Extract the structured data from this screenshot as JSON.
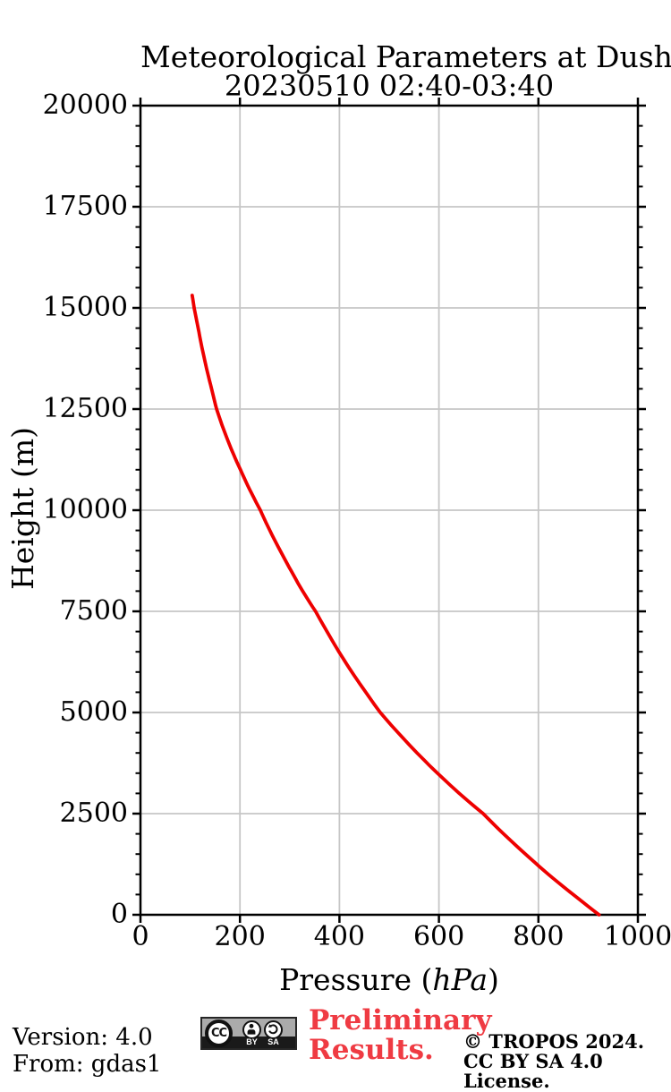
{
  "chart_data": {
    "type": "line",
    "title": "Meteorological Parameters at Dushanbe",
    "subtitle": "20230510 02:40-03:40",
    "xlabel": "Pressure (hPa)",
    "xlabel_parts": {
      "prefix": "Pressure (",
      "unit": "hPa",
      "suffix": ")"
    },
    "ylabel": "Height (m)",
    "xlim": [
      0,
      1000
    ],
    "ylim": [
      0,
      20000
    ],
    "x_ticks": [
      0,
      200,
      400,
      600,
      800,
      1000
    ],
    "y_ticks": [
      0,
      2500,
      5000,
      7500,
      10000,
      12500,
      15000,
      17500,
      20000
    ],
    "y_minor_step": 500,
    "grid": true,
    "grid_color": "#c6c6c6",
    "axis_color": "#000000",
    "series": [
      {
        "name": "pressure-height-profile",
        "color": "#ee0000",
        "points_height_pressure": [
          [
            0,
            922
          ],
          [
            500,
            870
          ],
          [
            1000,
            820
          ],
          [
            1500,
            774
          ],
          [
            2000,
            730
          ],
          [
            2500,
            689
          ],
          [
            3000,
            641
          ],
          [
            3500,
            597
          ],
          [
            4000,
            556
          ],
          [
            4500,
            518
          ],
          [
            5000,
            482
          ],
          [
            5500,
            453
          ],
          [
            6000,
            425
          ],
          [
            6500,
            399
          ],
          [
            7000,
            375
          ],
          [
            7500,
            352
          ],
          [
            8000,
            326
          ],
          [
            8500,
            303
          ],
          [
            9000,
            281
          ],
          [
            9500,
            260
          ],
          [
            10000,
            241
          ],
          [
            10500,
            220
          ],
          [
            11000,
            201
          ],
          [
            11500,
            183
          ],
          [
            12000,
            167
          ],
          [
            12500,
            153
          ],
          [
            13000,
            143
          ],
          [
            13500,
            133
          ],
          [
            14000,
            124
          ],
          [
            14500,
            116
          ],
          [
            15000,
            108
          ],
          [
            15310,
            104
          ]
        ]
      }
    ]
  },
  "footer": {
    "version_line": "Version: 4.0",
    "source_line": "From: gdas1",
    "preliminary_line1": "Preliminary",
    "preliminary_line2": "Results.",
    "preliminary_color": "#ef3b43",
    "copyright_line1": "© TROPOS 2024.",
    "copyright_line2": "CC BY SA 4.0 License.",
    "cc_badge": {
      "cc_text": "CC",
      "by_label": "BY",
      "sa_label": "SA"
    }
  }
}
